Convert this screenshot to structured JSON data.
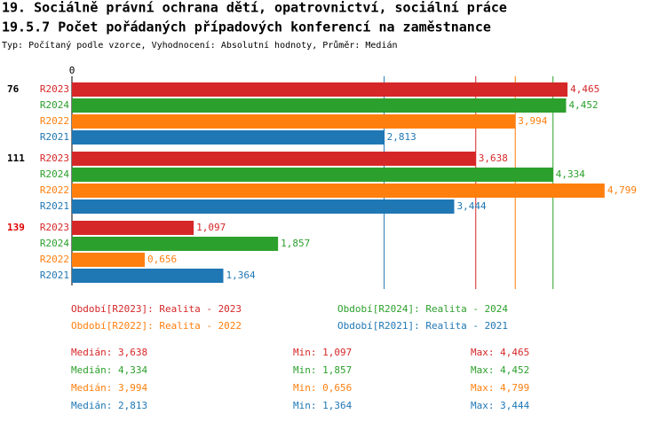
{
  "chart_data": {
    "type": "bar",
    "orientation": "horizontal",
    "title": "19. Sociálně právní ochrana dětí, opatrovnictví, sociální práce",
    "subtitle": "19.5.7 Počet pořádaných případových konferencí na zaměstnance",
    "note": "Typ: Počítaný podle vzorce, Vyhodnocení: Absolutní hodnoty, Průměr: Medián",
    "categories": [
      "76",
      "111",
      "139"
    ],
    "category_colors": [
      "#000000",
      "#000000",
      "#e00000"
    ],
    "xlim": [
      0,
      4.8
    ],
    "xticks": [
      0
    ],
    "series": [
      {
        "name": "R2023",
        "color": "#d62728",
        "legend_label": "Období[R2023]: Realita - 2023",
        "values": [
          4.465,
          3.638,
          1.097
        ],
        "value_labels": [
          "4,465",
          "3,638",
          "1,097"
        ],
        "stats": [
          {
            "label": "Medián: 3,638",
            "value": 3.638
          },
          {
            "label": "Min: 1,097",
            "value": 1.097
          },
          {
            "label": "Max: 4,465",
            "value": 4.465
          }
        ]
      },
      {
        "name": "R2024",
        "color": "#2ca02c",
        "legend_label": "Období[R2024]: Realita - 2024",
        "values": [
          4.452,
          4.334,
          1.857
        ],
        "value_labels": [
          "4,452",
          "4,334",
          "1,857"
        ],
        "stats": [
          {
            "label": "Medián: 4,334",
            "value": 4.334
          },
          {
            "label": "Min: 1,857",
            "value": 1.857
          },
          {
            "label": "Max: 4,452",
            "value": 4.452
          }
        ]
      },
      {
        "name": "R2022",
        "color": "#ff7f0e",
        "legend_label": "Období[R2022]: Realita - 2022",
        "values": [
          3.994,
          4.799,
          0.656
        ],
        "value_labels": [
          "3,994",
          "4,799",
          "0,656"
        ],
        "stats": [
          {
            "label": "Medián: 3,994",
            "value": 3.994
          },
          {
            "label": "Min: 0,656",
            "value": 0.656
          },
          {
            "label": "Max: 4,799",
            "value": 4.799
          }
        ]
      },
      {
        "name": "R2021",
        "color": "#1f77b4",
        "legend_label": "Období[R2021]: Realita - 2021",
        "values": [
          2.813,
          3.444,
          1.364
        ],
        "value_labels": [
          "2,813",
          "3,444",
          "1,364"
        ],
        "stats": [
          {
            "label": "Medián: 2,813",
            "value": 2.813
          },
          {
            "label": "Min: 1,364",
            "value": 1.364
          },
          {
            "label": "Max: 3,444",
            "value": 3.444
          }
        ]
      }
    ]
  }
}
